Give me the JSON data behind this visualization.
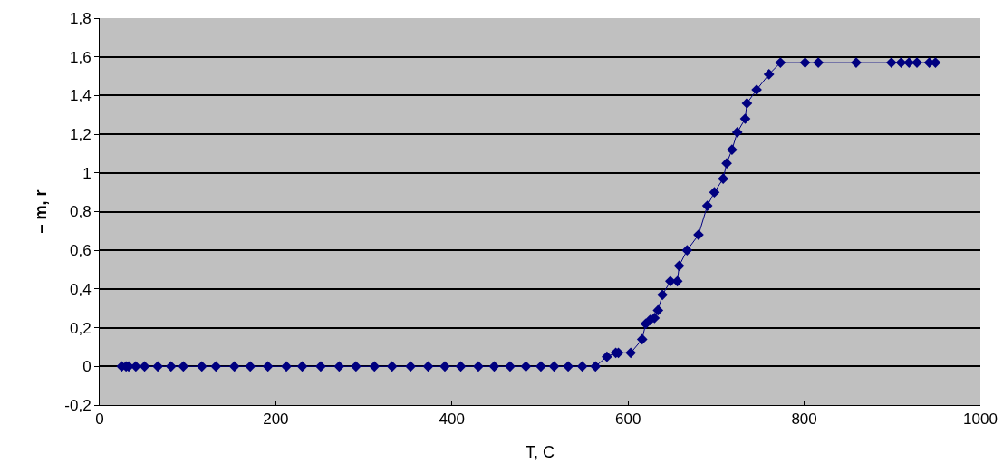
{
  "chart_data": {
    "type": "line",
    "xlabel": "T, C",
    "ylabel": "– m, r",
    "marker": "diamond",
    "line_style": "solid",
    "grid": "y",
    "legend": false,
    "xlim": [
      0,
      1000
    ],
    "xticks": [
      0,
      200,
      400,
      600,
      800,
      1000
    ],
    "ylim": [
      -0.2,
      1.8
    ],
    "yticks": [
      {
        "value": -0.2,
        "label": "-0,2"
      },
      0,
      {
        "value": 0.2,
        "label": "0,2"
      },
      {
        "value": 0.4,
        "label": "0,4"
      },
      {
        "value": 0.6,
        "label": "0,6"
      },
      {
        "value": 0.8,
        "label": "0,8"
      },
      1,
      {
        "value": 1.2,
        "label": "1,2"
      },
      {
        "value": 1.4,
        "label": "1,4"
      },
      {
        "value": 1.6,
        "label": "1,6"
      },
      {
        "value": 1.8,
        "label": "1,8"
      }
    ],
    "x": [
      25,
      30,
      33,
      41,
      51,
      66,
      81,
      95,
      116,
      132,
      153,
      171,
      191,
      212,
      230,
      251,
      272,
      291,
      312,
      332,
      353,
      373,
      392,
      410,
      430,
      448,
      466,
      484,
      501,
      516,
      532,
      548,
      563,
      576,
      586,
      589,
      603,
      616,
      620,
      625,
      630,
      634,
      639,
      648,
      656,
      658,
      667,
      680,
      690,
      698,
      708,
      712,
      718,
      724,
      733,
      735,
      746,
      760,
      773,
      801,
      816,
      859,
      899,
      910,
      919,
      928,
      942,
      949
    ],
    "series": [
      {
        "color": "#000080",
        "values": [
          0,
          0,
          0,
          0,
          0,
          0,
          0,
          0,
          0,
          0,
          0,
          0,
          0,
          0,
          0,
          0,
          0,
          0,
          0,
          0,
          0,
          0,
          0,
          0,
          0,
          0,
          0,
          0,
          0,
          0,
          0,
          0,
          0,
          0.05,
          0.07,
          0.07,
          0.07,
          0.14,
          0.22,
          0.24,
          0.25,
          0.29,
          0.37,
          0.44,
          0.44,
          0.52,
          0.6,
          0.68,
          0.83,
          0.9,
          0.97,
          1.05,
          1.12,
          1.21,
          1.28,
          1.36,
          1.43,
          1.51,
          1.57,
          1.57,
          1.57,
          1.57,
          1.57,
          1.57,
          1.57,
          1.57,
          1.57,
          1.57
        ]
      }
    ]
  }
}
